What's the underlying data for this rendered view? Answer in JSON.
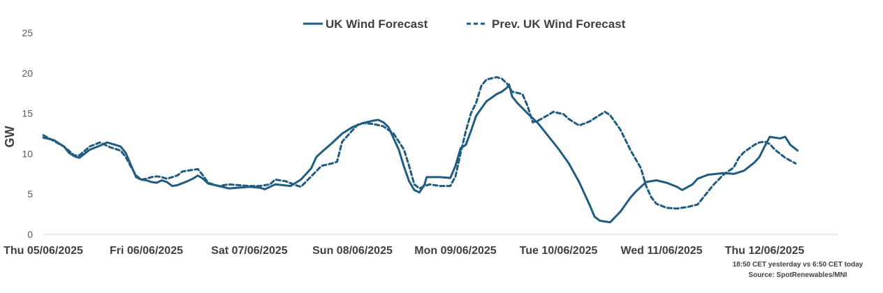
{
  "chart_data": {
    "type": "line",
    "ylabel": "GW",
    "ylim": [
      0,
      25
    ],
    "yticks": [
      0,
      5,
      10,
      15,
      20,
      25
    ],
    "xlim": [
      0,
      7.75
    ],
    "x_tick_labels": [
      "Thu 05/06/2025",
      "Fri 06/06/2025",
      "Sat 07/06/2025",
      "Sun 08/06/2025",
      "Mon 09/06/2025",
      "Tue 10/06/2025",
      "Wed 11/06/2025",
      "Thu 12/06/2025"
    ],
    "grid": false,
    "legend_position": "top-center",
    "series": [
      {
        "name": "UK Wind Forecast",
        "style": "solid",
        "color": "#1F5C80",
        "points": [
          [
            0.0,
            12.0
          ],
          [
            0.1,
            11.7
          ],
          [
            0.2,
            10.9
          ],
          [
            0.25,
            10.1
          ],
          [
            0.3,
            9.7
          ],
          [
            0.35,
            9.5
          ],
          [
            0.45,
            10.5
          ],
          [
            0.55,
            11.0
          ],
          [
            0.62,
            11.4
          ],
          [
            0.7,
            11.1
          ],
          [
            0.75,
            10.9
          ],
          [
            0.8,
            10.1
          ],
          [
            0.85,
            8.6
          ],
          [
            0.9,
            7.1
          ],
          [
            0.95,
            6.8
          ],
          [
            1.0,
            6.7
          ],
          [
            1.05,
            6.5
          ],
          [
            1.1,
            6.4
          ],
          [
            1.15,
            6.7
          ],
          [
            1.2,
            6.5
          ],
          [
            1.25,
            6.0
          ],
          [
            1.3,
            6.1
          ],
          [
            1.4,
            6.6
          ],
          [
            1.45,
            6.9
          ],
          [
            1.5,
            7.3
          ],
          [
            1.55,
            6.9
          ],
          [
            1.6,
            6.3
          ],
          [
            1.7,
            6.0
          ],
          [
            1.8,
            5.7
          ],
          [
            1.9,
            5.8
          ],
          [
            2.0,
            5.9
          ],
          [
            2.1,
            5.8
          ],
          [
            2.15,
            5.6
          ],
          [
            2.25,
            6.2
          ],
          [
            2.4,
            6.0
          ],
          [
            2.5,
            6.8
          ],
          [
            2.6,
            8.2
          ],
          [
            2.65,
            9.6
          ],
          [
            2.7,
            10.2
          ],
          [
            2.8,
            11.3
          ],
          [
            2.9,
            12.5
          ],
          [
            3.0,
            13.3
          ],
          [
            3.1,
            13.8
          ],
          [
            3.2,
            14.1
          ],
          [
            3.25,
            14.2
          ],
          [
            3.3,
            13.9
          ],
          [
            3.35,
            13.3
          ],
          [
            3.4,
            11.9
          ],
          [
            3.45,
            10.5
          ],
          [
            3.5,
            8.4
          ],
          [
            3.55,
            6.6
          ],
          [
            3.6,
            5.5
          ],
          [
            3.65,
            5.2
          ],
          [
            3.7,
            6.2
          ],
          [
            3.72,
            7.1
          ],
          [
            3.85,
            7.1
          ],
          [
            3.95,
            7.0
          ],
          [
            4.0,
            8.5
          ],
          [
            4.05,
            10.7
          ],
          [
            4.1,
            11.1
          ],
          [
            4.15,
            12.8
          ],
          [
            4.2,
            14.7
          ],
          [
            4.3,
            16.5
          ],
          [
            4.4,
            17.4
          ],
          [
            4.45,
            17.7
          ],
          [
            4.5,
            18.2
          ],
          [
            4.52,
            18.6
          ],
          [
            4.55,
            17.1
          ],
          [
            4.6,
            16.3
          ],
          [
            4.7,
            15.0
          ],
          [
            4.8,
            13.8
          ],
          [
            4.9,
            12.2
          ],
          [
            5.0,
            10.6
          ],
          [
            5.1,
            8.8
          ],
          [
            5.2,
            6.5
          ],
          [
            5.3,
            3.7
          ],
          [
            5.35,
            2.2
          ],
          [
            5.4,
            1.7
          ],
          [
            5.45,
            1.6
          ],
          [
            5.5,
            1.5
          ],
          [
            5.6,
            2.8
          ],
          [
            5.7,
            4.6
          ],
          [
            5.75,
            5.3
          ],
          [
            5.85,
            6.5
          ],
          [
            5.95,
            6.7
          ],
          [
            6.05,
            6.4
          ],
          [
            6.15,
            5.9
          ],
          [
            6.2,
            5.5
          ],
          [
            6.3,
            6.2
          ],
          [
            6.35,
            6.9
          ],
          [
            6.45,
            7.4
          ],
          [
            6.6,
            7.6
          ],
          [
            6.7,
            7.5
          ],
          [
            6.8,
            7.9
          ],
          [
            6.9,
            8.9
          ],
          [
            6.95,
            9.6
          ],
          [
            7.0,
            10.9
          ],
          [
            7.05,
            12.1
          ],
          [
            7.1,
            12.0
          ],
          [
            7.15,
            11.9
          ],
          [
            7.2,
            12.1
          ],
          [
            7.25,
            11.1
          ],
          [
            7.32,
            10.4
          ]
        ]
      },
      {
        "name": "Prev. UK Wind Forecast",
        "style": "dashed",
        "color": "#1F5C80",
        "points": [
          [
            0.0,
            12.3
          ],
          [
            0.1,
            11.6
          ],
          [
            0.2,
            10.9
          ],
          [
            0.3,
            9.8
          ],
          [
            0.35,
            9.8
          ],
          [
            0.45,
            10.9
          ],
          [
            0.55,
            11.4
          ],
          [
            0.65,
            10.8
          ],
          [
            0.75,
            10.4
          ],
          [
            0.8,
            9.6
          ],
          [
            0.85,
            8.4
          ],
          [
            0.9,
            7.3
          ],
          [
            0.95,
            6.8
          ],
          [
            1.0,
            6.9
          ],
          [
            1.05,
            7.1
          ],
          [
            1.1,
            7.2
          ],
          [
            1.15,
            7.1
          ],
          [
            1.2,
            6.9
          ],
          [
            1.3,
            7.3
          ],
          [
            1.35,
            7.8
          ],
          [
            1.45,
            8.0
          ],
          [
            1.5,
            8.1
          ],
          [
            1.55,
            7.3
          ],
          [
            1.6,
            6.4
          ],
          [
            1.7,
            6.0
          ],
          [
            1.8,
            6.2
          ],
          [
            1.9,
            6.1
          ],
          [
            2.0,
            6.0
          ],
          [
            2.1,
            6.0
          ],
          [
            2.2,
            6.2
          ],
          [
            2.25,
            6.8
          ],
          [
            2.35,
            6.6
          ],
          [
            2.45,
            6.1
          ],
          [
            2.5,
            5.9
          ],
          [
            2.6,
            7.2
          ],
          [
            2.7,
            8.5
          ],
          [
            2.8,
            8.8
          ],
          [
            2.85,
            9.0
          ],
          [
            2.9,
            11.5
          ],
          [
            3.0,
            12.9
          ],
          [
            3.05,
            13.6
          ],
          [
            3.1,
            13.8
          ],
          [
            3.2,
            13.7
          ],
          [
            3.3,
            13.4
          ],
          [
            3.4,
            12.5
          ],
          [
            3.5,
            10.5
          ],
          [
            3.55,
            8.5
          ],
          [
            3.6,
            6.2
          ],
          [
            3.65,
            5.7
          ],
          [
            3.7,
            6.0
          ],
          [
            3.75,
            6.2
          ],
          [
            3.85,
            6.0
          ],
          [
            3.95,
            6.0
          ],
          [
            4.0,
            7.2
          ],
          [
            4.05,
            10.1
          ],
          [
            4.1,
            12.8
          ],
          [
            4.15,
            15.0
          ],
          [
            4.2,
            16.3
          ],
          [
            4.25,
            18.4
          ],
          [
            4.3,
            19.2
          ],
          [
            4.4,
            19.5
          ],
          [
            4.45,
            19.3
          ],
          [
            4.5,
            18.7
          ],
          [
            4.55,
            17.7
          ],
          [
            4.65,
            17.4
          ],
          [
            4.7,
            15.9
          ],
          [
            4.75,
            13.9
          ],
          [
            4.8,
            14.1
          ],
          [
            4.9,
            14.8
          ],
          [
            4.95,
            15.2
          ],
          [
            5.05,
            14.9
          ],
          [
            5.1,
            14.3
          ],
          [
            5.2,
            13.5
          ],
          [
            5.3,
            14.0
          ],
          [
            5.4,
            14.8
          ],
          [
            5.45,
            15.2
          ],
          [
            5.5,
            14.8
          ],
          [
            5.55,
            13.9
          ],
          [
            5.6,
            13.0
          ],
          [
            5.7,
            10.4
          ],
          [
            5.8,
            8.2
          ],
          [
            5.85,
            6.0
          ],
          [
            5.9,
            4.6
          ],
          [
            5.95,
            3.8
          ],
          [
            6.05,
            3.3
          ],
          [
            6.15,
            3.2
          ],
          [
            6.25,
            3.4
          ],
          [
            6.35,
            3.7
          ],
          [
            6.4,
            4.5
          ],
          [
            6.5,
            6.1
          ],
          [
            6.6,
            7.4
          ],
          [
            6.7,
            8.3
          ],
          [
            6.75,
            9.5
          ],
          [
            6.8,
            10.2
          ],
          [
            6.9,
            11.1
          ],
          [
            6.95,
            11.4
          ],
          [
            7.0,
            11.5
          ],
          [
            7.05,
            11.2
          ],
          [
            7.1,
            10.5
          ],
          [
            7.2,
            9.5
          ],
          [
            7.3,
            8.8
          ]
        ]
      }
    ],
    "annotations": [
      "18:50 CET yesterday vs  6:50 CET today",
      "Source: SpotRenewables/MNI"
    ]
  }
}
